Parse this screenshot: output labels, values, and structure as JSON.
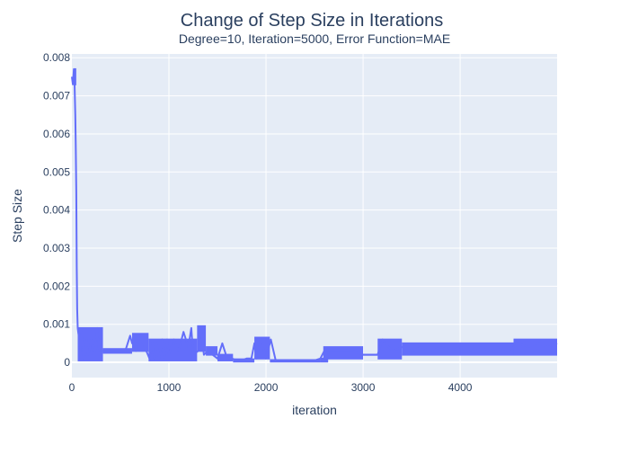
{
  "chart_data": {
    "type": "line",
    "title": "Change of Step Size in Iterations",
    "subtitle": "Degree=10, Iteration=5000, Error Function=MAE",
    "xlabel": "iteration",
    "ylabel": "Step Size",
    "xlim": [
      0,
      4999
    ],
    "ylim": [
      -0.0004,
      0.0081
    ],
    "x_ticks": [
      0,
      1000,
      2000,
      3000,
      4000
    ],
    "x_tick_labels": [
      "0",
      "1000",
      "2000",
      "3000",
      "4000"
    ],
    "y_ticks": [
      0,
      0.001,
      0.002,
      0.003,
      0.004,
      0.005,
      0.006,
      0.007,
      0.008
    ],
    "y_tick_labels": [
      "0",
      "0.001",
      "0.002",
      "0.003",
      "0.004",
      "0.005",
      "0.006",
      "0.007",
      "0.008"
    ],
    "grid": true,
    "background_color": "#e5ecf6",
    "line_color": "#636efa",
    "series": [
      {
        "x": [
          0,
          10,
          20,
          25,
          30,
          35,
          40,
          45,
          50,
          55,
          60,
          65,
          70,
          75,
          80,
          90,
          100,
          110,
          120,
          130,
          140,
          150,
          160,
          170,
          180,
          200,
          220,
          240,
          260,
          280,
          300,
          320,
          340,
          360,
          400,
          450,
          500,
          550,
          600,
          620,
          640,
          660,
          700,
          750,
          800,
          830,
          850,
          870,
          900,
          930,
          950,
          980,
          1000,
          1050,
          1100,
          1150,
          1200,
          1230,
          1250,
          1300,
          1330,
          1360,
          1400,
          1450,
          1500,
          1550,
          1600,
          1650,
          1700,
          1750,
          1800,
          1850,
          1880,
          1900,
          1950,
          2000,
          2050,
          2100,
          2200,
          2300,
          2400,
          2500,
          2560,
          2600,
          2700,
          2800,
          2900,
          3000,
          3100,
          3150,
          3200,
          3300,
          3400,
          3500,
          3600,
          3700,
          3800,
          3900,
          4000,
          4100,
          4200,
          4300,
          4400,
          4500,
          4600,
          4700,
          4800,
          4900,
          4999
        ],
        "y": [
          0.0075,
          0.0073,
          0.0077,
          0.0076,
          0.0071,
          0.0065,
          0.0057,
          0.0045,
          0.0025,
          0.0014,
          0.0009,
          0.0008,
          0.0007,
          0.0004,
          0.0007,
          0.0003,
          0.0008,
          0.0005,
          0.0001,
          0.0004,
          0.0002,
          0.0006,
          0.0003,
          0.0002,
          0.0003,
          0.0006,
          0.0002,
          0.0003,
          0.0009,
          0.0003,
          0.0003,
          0.0003,
          0.0003,
          0.0003,
          0.0003,
          0.0003,
          0.0003,
          0.0003,
          0.0007,
          0.0005,
          0.0007,
          0.0003,
          0.0007,
          0.0004,
          0.0001,
          0.0005,
          0.0001,
          0.0005,
          0.0001,
          0.0006,
          0.0001,
          0.0006,
          0.0002,
          0.0006,
          0.0003,
          0.0008,
          0.0004,
          0.0009,
          0.0002,
          0.0003,
          0.0009,
          0.0002,
          0.0003,
          0.0002,
          0.0001,
          0.0005,
          0.0001,
          0.0001,
          5e-05,
          5e-05,
          0.0001,
          0.0001,
          0.0005,
          0.0001,
          0.0006,
          0.0001,
          0.0006,
          5e-05,
          5e-05,
          5e-05,
          5e-05,
          5e-05,
          0.0001,
          0.0003,
          0.0003,
          0.0003,
          0.0003,
          0.0002,
          0.0002,
          0.0002,
          0.0006,
          0.0003,
          0.0004,
          0.0003,
          0.0004,
          0.0003,
          0.0004,
          0.0003,
          0.0004,
          0.0003,
          0.0004,
          0.0003,
          0.0004,
          0.0003,
          0.0005,
          0.0004,
          0.0005,
          0.0004,
          0.0005
        ]
      }
    ],
    "bands": [
      {
        "x0": 20,
        "x1": 45,
        "lo": 0.0073,
        "hi": 0.0077
      },
      {
        "x0": 60,
        "x1": 320,
        "lo": 5e-05,
        "hi": 0.0009
      },
      {
        "x0": 320,
        "x1": 620,
        "lo": 0.00025,
        "hi": 0.00035
      },
      {
        "x0": 620,
        "x1": 790,
        "lo": 0.0003,
        "hi": 0.00075
      },
      {
        "x0": 790,
        "x1": 1290,
        "lo": 5e-05,
        "hi": 0.0006
      },
      {
        "x0": 1290,
        "x1": 1380,
        "lo": 0.0003,
        "hi": 0.00095
      },
      {
        "x0": 1380,
        "x1": 1500,
        "lo": 0.0002,
        "hi": 0.0004
      },
      {
        "x0": 1500,
        "x1": 1660,
        "lo": 5e-05,
        "hi": 0.0002
      },
      {
        "x0": 1660,
        "x1": 1880,
        "lo": 2e-05,
        "hi": 8e-05
      },
      {
        "x0": 1880,
        "x1": 2040,
        "lo": 0.0001,
        "hi": 0.00065
      },
      {
        "x0": 2040,
        "x1": 2560,
        "lo": 2e-05,
        "hi": 6e-05
      },
      {
        "x0": 2560,
        "x1": 2640,
        "lo": 2e-05,
        "hi": 0.0001
      },
      {
        "x0": 2590,
        "x1": 3000,
        "lo": 0.0001,
        "hi": 0.0004
      },
      {
        "x0": 3000,
        "x1": 3150,
        "lo": 0.0002,
        "hi": 0.0002
      },
      {
        "x0": 3150,
        "x1": 3400,
        "lo": 0.0001,
        "hi": 0.0006
      },
      {
        "x0": 3400,
        "x1": 4550,
        "lo": 0.0002,
        "hi": 0.0005
      },
      {
        "x0": 4550,
        "x1": 4999,
        "lo": 0.0002,
        "hi": 0.0006
      }
    ]
  }
}
